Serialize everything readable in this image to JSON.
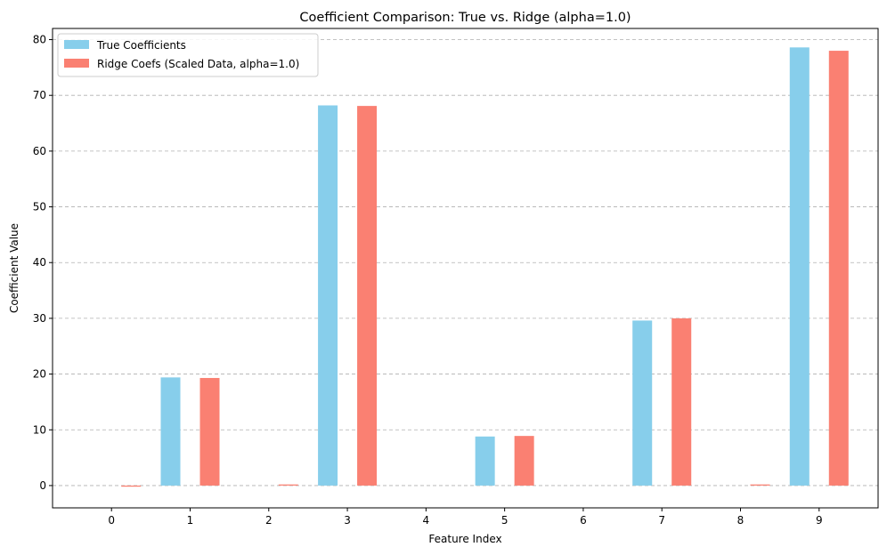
{
  "chart_data": {
    "type": "bar",
    "title": "Coefficient Comparison: True vs. Ridge (alpha=1.0)",
    "xlabel": "Feature Index",
    "ylabel": "Coefficient Value",
    "categories": [
      "0",
      "1",
      "2",
      "3",
      "4",
      "5",
      "6",
      "7",
      "8",
      "9"
    ],
    "ylim": [
      -4,
      82
    ],
    "yticks": [
      0,
      10,
      20,
      30,
      40,
      50,
      60,
      70,
      80
    ],
    "grid": "y-dashed",
    "legend_position": "top-left",
    "series": [
      {
        "name": "True Coefficients",
        "color": "#87CEEB",
        "values": [
          0,
          19.4,
          0,
          68.2,
          0,
          8.8,
          0,
          29.6,
          0,
          78.6
        ]
      },
      {
        "name": "Ridge Coefs (Scaled Data, alpha=1.0)",
        "color": "#FA8072",
        "values": [
          -0.2,
          19.3,
          0.2,
          68.1,
          0,
          8.9,
          0,
          30.0,
          0.2,
          78.0
        ]
      }
    ]
  }
}
